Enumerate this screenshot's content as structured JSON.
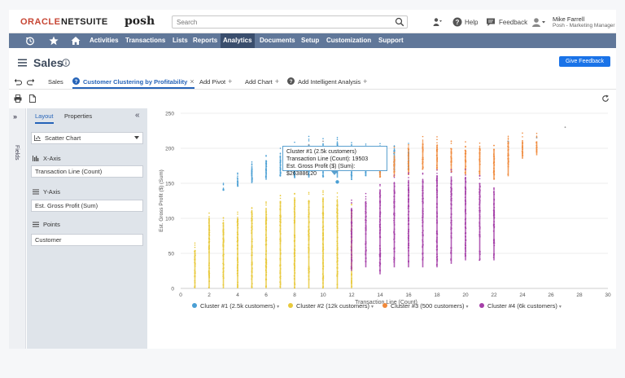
{
  "header": {
    "logo_oracle": "ORACLE",
    "logo_netsuite": "NETSUITE",
    "logo_posh": "posh",
    "search_placeholder": "Search",
    "help_label": "Help",
    "feedback_label": "Feedback",
    "user_name": "Mike Farrell",
    "user_role": "Posh - Marketing Manager"
  },
  "nav": {
    "items": [
      "Activities",
      "Transactions",
      "Lists",
      "Reports",
      "Analytics",
      "Documents",
      "Setup",
      "Customization",
      "Support"
    ],
    "active": "Analytics"
  },
  "page": {
    "title": "Sales",
    "give_feedback_label": "Give Feedback"
  },
  "tabs": {
    "sales": "Sales",
    "active": "Customer Clustering by Profitability",
    "add_pivot": "Add Pivot",
    "add_chart": "Add Chart",
    "add_analysis": "Add Intelligent Analysis"
  },
  "panel": {
    "fields_label": "Fields",
    "tab_layout": "Layout",
    "tab_properties": "Properties",
    "chart_type": "Scatter Chart",
    "x_axis_label": "X-Axis",
    "x_axis_value": "Transaction Line (Count)",
    "y_axis_label": "Y-Axis",
    "y_axis_value": "Est. Gross Profit (Sum)",
    "points_label": "Points",
    "points_value": "Customer"
  },
  "tooltip": {
    "title": "Cluster #1 (2.5k customers)",
    "line1": "Transaction Line (Count): 19503",
    "line2": "Est. Gross Profit ($) (Sum): $263886.20"
  },
  "colors": {
    "cluster1": "#4a9fd4",
    "cluster2": "#e8c93b",
    "cluster3": "#f0893b",
    "cluster4": "#a53fa8",
    "nav_bg": "#607799",
    "accent": "#1a73e8"
  },
  "chart_data": {
    "type": "scatter",
    "xlabel": "Transaction Line (Count)",
    "ylabel": "Est. Gross Profit ($) (Sum)",
    "xlim": [
      0,
      30
    ],
    "ylim": [
      0,
      250
    ],
    "xticks": [
      0,
      2,
      4,
      6,
      8,
      10,
      12,
      14,
      16,
      18,
      20,
      22,
      24,
      26,
      28,
      30
    ],
    "yticks": [
      0,
      50,
      100,
      150,
      200,
      250
    ],
    "grid": true,
    "legend_position": "bottom",
    "series": [
      {
        "name": "Cluster #1 (2.5k customers)",
        "color": "#4a9fd4",
        "x": [
          3,
          4,
          5,
          6,
          7,
          8,
          9,
          10,
          11,
          12,
          13,
          14,
          15,
          16
        ],
        "y_low": [
          140,
          145,
          150,
          155,
          160,
          158,
          158,
          158,
          158,
          155,
          160,
          162,
          168,
          170
        ],
        "y_high": [
          142,
          158,
          175,
          182,
          190,
          198,
          205,
          205,
          208,
          200,
          202,
          198,
          198,
          195
        ]
      },
      {
        "name": "Cluster #2 (12k customers)",
        "color": "#e8c93b",
        "x": [
          1,
          2,
          3,
          4,
          5,
          6,
          7,
          8,
          9,
          10,
          11,
          12
        ],
        "y_low": [
          0,
          0,
          0,
          0,
          0,
          0,
          0,
          0,
          0,
          0,
          0,
          0
        ],
        "y_high": [
          55,
          100,
          95,
          100,
          110,
          115,
          125,
          130,
          125,
          130,
          125,
          110
        ]
      },
      {
        "name": "Cluster #3 (500 customers)",
        "color": "#f0893b",
        "x": [
          14,
          15,
          16,
          17,
          18,
          19,
          20,
          21,
          22,
          23,
          24,
          25
        ],
        "y_low": [
          158,
          160,
          162,
          170,
          168,
          165,
          162,
          160,
          155,
          160,
          185,
          190
        ],
        "y_high": [
          168,
          190,
          200,
          208,
          205,
          200,
          198,
          200,
          198,
          210,
          210,
          210
        ]
      },
      {
        "name": "Cluster #4 (6k customers)",
        "color": "#a53fa8",
        "x": [
          12,
          13,
          14,
          15,
          16,
          17,
          18,
          19,
          20,
          21,
          22
        ],
        "y_low": [
          25,
          30,
          20,
          30,
          30,
          30,
          30,
          35,
          40,
          40,
          40
        ],
        "y_high": [
          115,
          125,
          140,
          150,
          155,
          155,
          160,
          160,
          158,
          150,
          140
        ]
      }
    ],
    "outliers": [
      {
        "x": 27,
        "y": 230
      },
      {
        "x": 23,
        "y": 210
      },
      {
        "x": 25,
        "y": 215
      },
      {
        "x": 9,
        "y": 205
      },
      {
        "x": 10,
        "y": 210
      }
    ]
  }
}
